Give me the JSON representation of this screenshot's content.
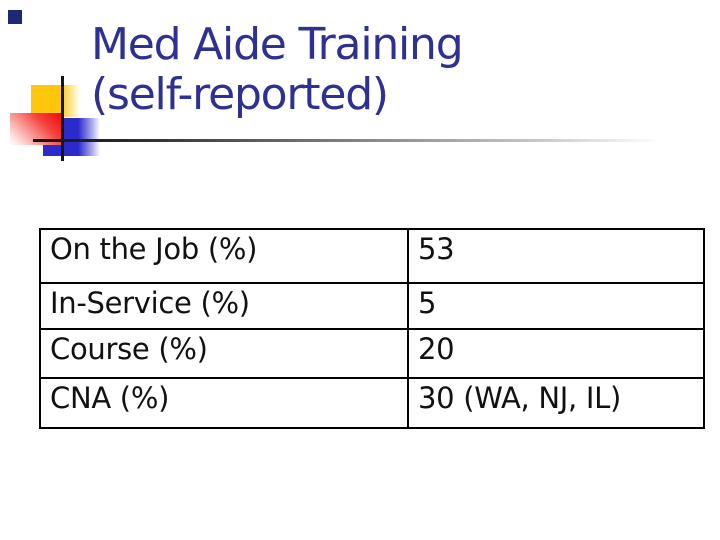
{
  "slide": {
    "title_line1": "Med Aide Training",
    "title_line2": "(self-reported)"
  },
  "table": {
    "rows": [
      {
        "label": "On the Job (%)",
        "value": "53"
      },
      {
        "label": "In-Service (%)",
        "value": "5"
      },
      {
        "label": "Course (%)",
        "value": "20"
      },
      {
        "label": "CNA (%)",
        "value": "30 (WA, NJ, IL)"
      }
    ]
  },
  "decor": {
    "title_color": "#2e3092",
    "corner_square_color": "#1e2875",
    "yellow_square_color": "#ffc60b",
    "blue_square_color": "#2b2bcc",
    "red_square_color": "#ee0a0a",
    "crosshair_line_color": "#141414",
    "rule_gradient_end_color": "#c6c6c6",
    "table_border_color": "#000000",
    "table_text_color": "#111111"
  }
}
